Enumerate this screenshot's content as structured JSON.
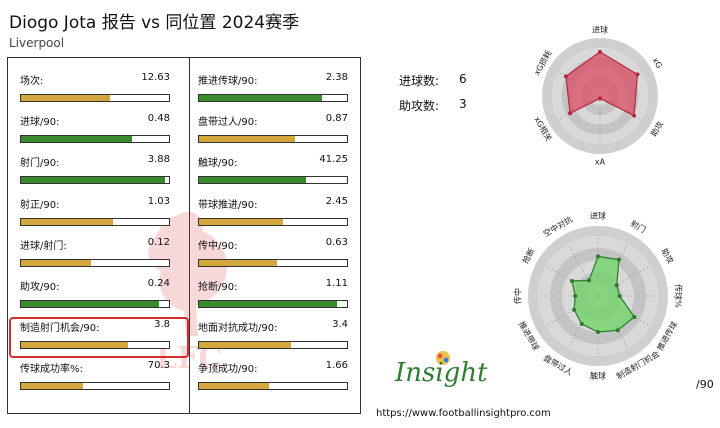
{
  "header": {
    "title": "Diogo Jota 报告 vs 同位置 2024赛季",
    "subtitle": "Liverpool"
  },
  "colors": {
    "gold": "#d4a73c",
    "green": "#3a8a2e",
    "radar_red": "#d9546b",
    "radar_green": "#72d36a",
    "ring": "#cfcfcf",
    "highlight": "#d62b2b"
  },
  "stats_left": [
    {
      "label": "场次:",
      "value": "12.63",
      "fill": 0.6,
      "color": "gold"
    },
    {
      "label": "进球/90:",
      "value": "0.48",
      "fill": 0.75,
      "color": "green"
    },
    {
      "label": "射门/90:",
      "value": "3.88",
      "fill": 0.97,
      "color": "green"
    },
    {
      "label": "射正/90:",
      "value": "1.03",
      "fill": 0.62,
      "color": "gold"
    },
    {
      "label": "进球/射门:",
      "value": "0.12",
      "fill": 0.47,
      "color": "gold"
    },
    {
      "label": "助攻/90:",
      "value": "0.24",
      "fill": 0.93,
      "color": "green"
    },
    {
      "label": "制造射门机会/90:",
      "value": "3.8",
      "fill": 0.72,
      "color": "gold"
    },
    {
      "label": "传球成功率%:",
      "value": "70.3",
      "fill": 0.42,
      "color": "gold"
    }
  ],
  "stats_right": [
    {
      "label": "推进传球/90:",
      "value": "2.38",
      "fill": 0.83,
      "color": "green"
    },
    {
      "label": "盘带过人/90:",
      "value": "0.87",
      "fill": 0.65,
      "color": "gold"
    },
    {
      "label": "触球/90:",
      "value": "41.25",
      "fill": 0.72,
      "color": "green"
    },
    {
      "label": "带球推进/90:",
      "value": "2.45",
      "fill": 0.57,
      "color": "gold"
    },
    {
      "label": "传中/90:",
      "value": "0.63",
      "fill": 0.53,
      "color": "gold"
    },
    {
      "label": "抢断/90:",
      "value": "1.11",
      "fill": 0.93,
      "color": "green"
    },
    {
      "label": "地面对抗成功/90:",
      "value": "3.4",
      "fill": 0.62,
      "color": "gold"
    },
    {
      "label": "争顶成功/90:",
      "value": "1.66",
      "fill": 0.47,
      "color": "gold"
    }
  ],
  "totals": {
    "goals_label": "进球数:",
    "goals_value": "6",
    "assists_label": "助攻数:",
    "assists_value": "3"
  },
  "chart_data": [
    {
      "type": "radar",
      "axes": [
        "进球",
        "xG",
        "助攻",
        "xA",
        "xG相关",
        "xG损耗"
      ],
      "values": [
        0.92,
        0.9,
        0.82,
        0.05,
        0.72,
        0.82
      ],
      "range": [
        0,
        1
      ]
    },
    {
      "type": "radar",
      "axes": [
        "进球",
        "射门",
        "助攻",
        "传球%",
        "推进传球",
        "制造射门机会",
        "触球",
        "盘带过人",
        "推进带球",
        "传中",
        "抢断",
        "空中对抗"
      ],
      "values": [
        0.66,
        0.7,
        0.36,
        0.36,
        0.7,
        0.66,
        0.6,
        0.54,
        0.46,
        0.38,
        0.5,
        0.3
      ],
      "range": [
        0,
        1
      ]
    }
  ],
  "footer": {
    "logo_text": "Insight",
    "url": "https://www.footballinsightpro.com",
    "per90": "/90"
  }
}
